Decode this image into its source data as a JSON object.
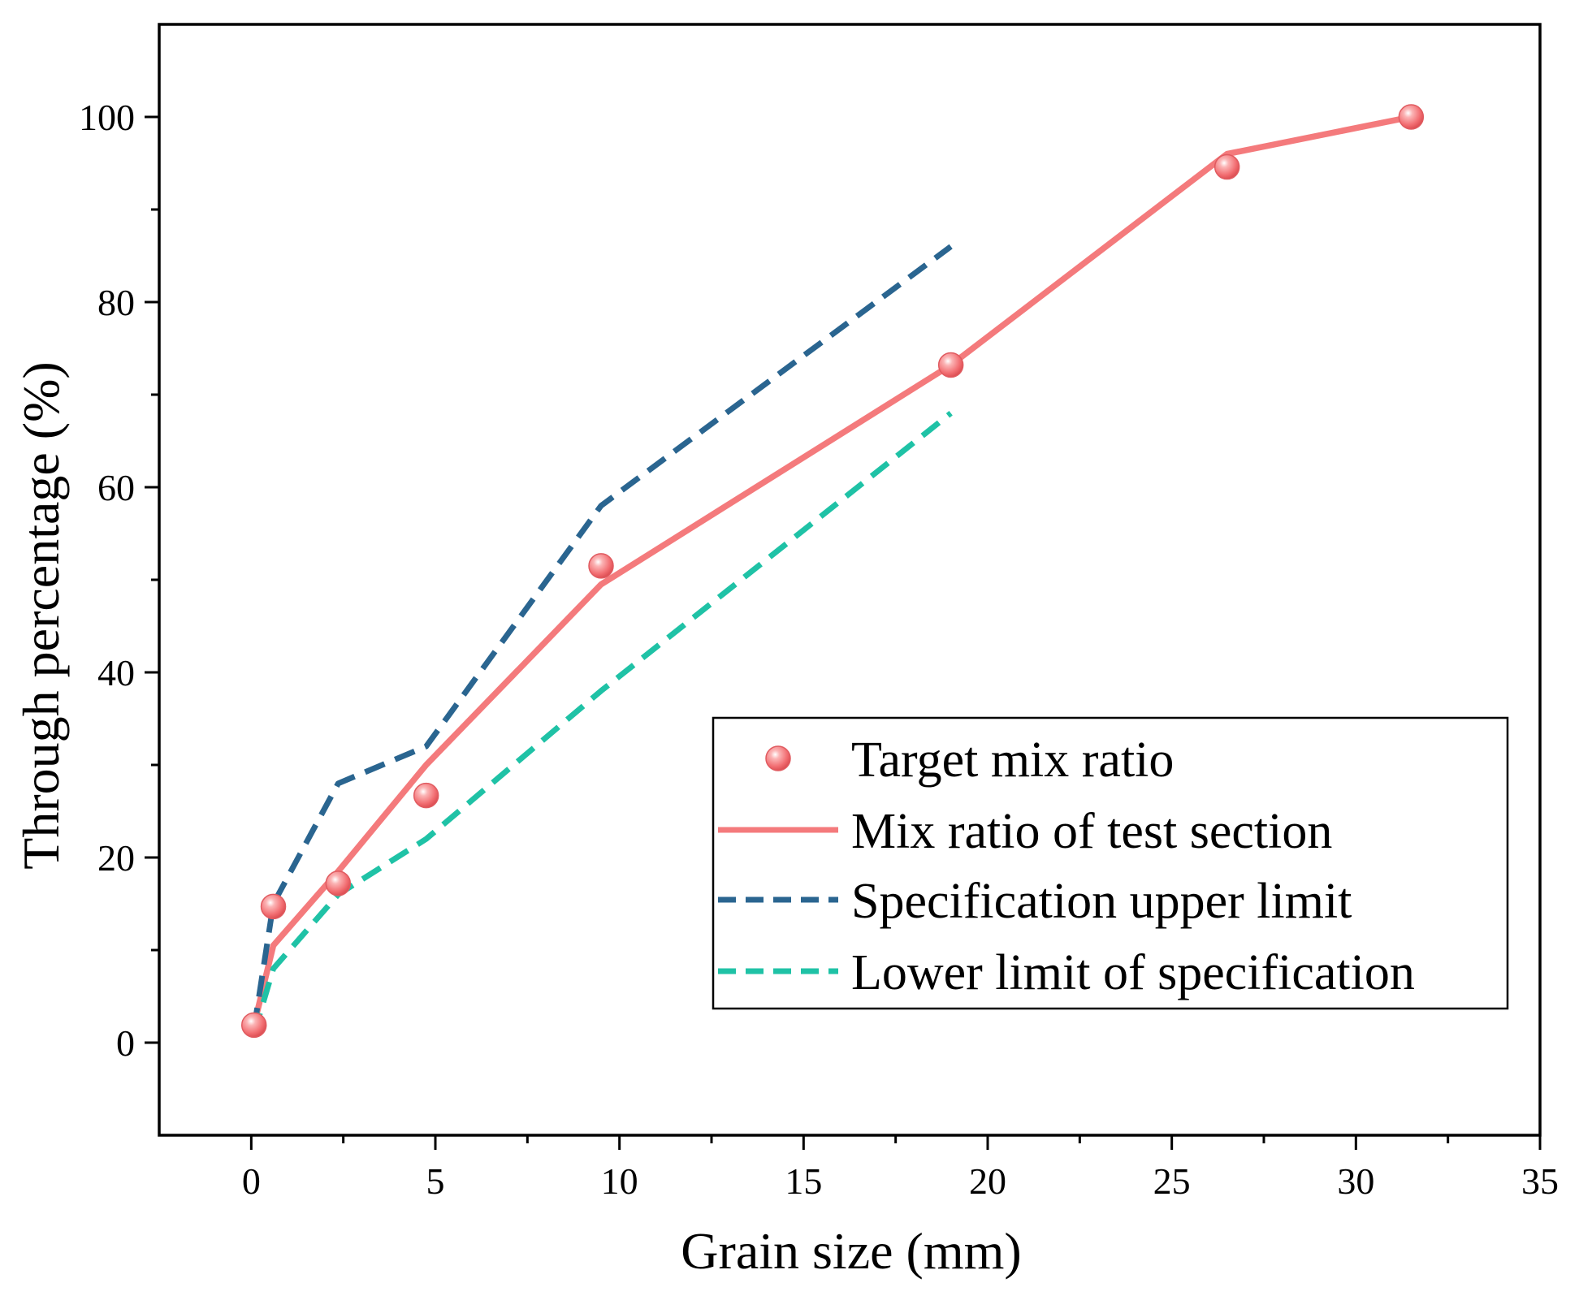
{
  "chart_data": {
    "type": "line",
    "title": "",
    "xlabel": "Grain size (mm)",
    "ylabel": "Through percentage (%)",
    "xlim": [
      -2.5,
      35
    ],
    "ylim": [
      -10,
      110
    ],
    "grid": false,
    "legend_position": "bottom-right",
    "x_major_ticks": [
      0,
      5,
      10,
      15,
      20,
      25,
      30,
      35
    ],
    "x_minor_ticks": [
      2.5,
      7.5,
      12.5,
      17.5,
      22.5,
      27.5,
      32.5
    ],
    "y_major_ticks": [
      0,
      20,
      40,
      60,
      80,
      100
    ],
    "y_minor_ticks": [
      10,
      30,
      50,
      70,
      90
    ],
    "series": [
      {
        "name": "Target mix ratio",
        "kind": "scatter",
        "color": "#f26e72",
        "x": [
          0.075,
          0.6,
          2.36,
          4.75,
          9.5,
          19,
          26.5,
          31.5
        ],
        "y": [
          1.9,
          14.7,
          17.2,
          26.7,
          51.5,
          73.2,
          94.6,
          100
        ]
      },
      {
        "name": "Mix ratio of test section",
        "kind": "line",
        "style": "solid",
        "color": "#f47a7c",
        "x": [
          0.075,
          0.6,
          2.36,
          4.75,
          9.5,
          19,
          26.5,
          31.5
        ],
        "y": [
          1.9,
          10.5,
          18.5,
          30,
          49.5,
          73.2,
          96,
          100
        ]
      },
      {
        "name": "Specification upper limit",
        "kind": "line",
        "style": "dashed",
        "color": "#2a6590",
        "x": [
          0.075,
          0.6,
          2.36,
          4.75,
          9.5,
          19
        ],
        "y": [
          1.5,
          15,
          28,
          32,
          58,
          86
        ]
      },
      {
        "name": "Lower limit of specification",
        "kind": "line",
        "style": "dashed",
        "color": "#1fc2a6",
        "x": [
          0.075,
          0.6,
          2.36,
          4.75,
          9.5,
          19
        ],
        "y": [
          1,
          8,
          16,
          22,
          38,
          68
        ]
      }
    ]
  }
}
